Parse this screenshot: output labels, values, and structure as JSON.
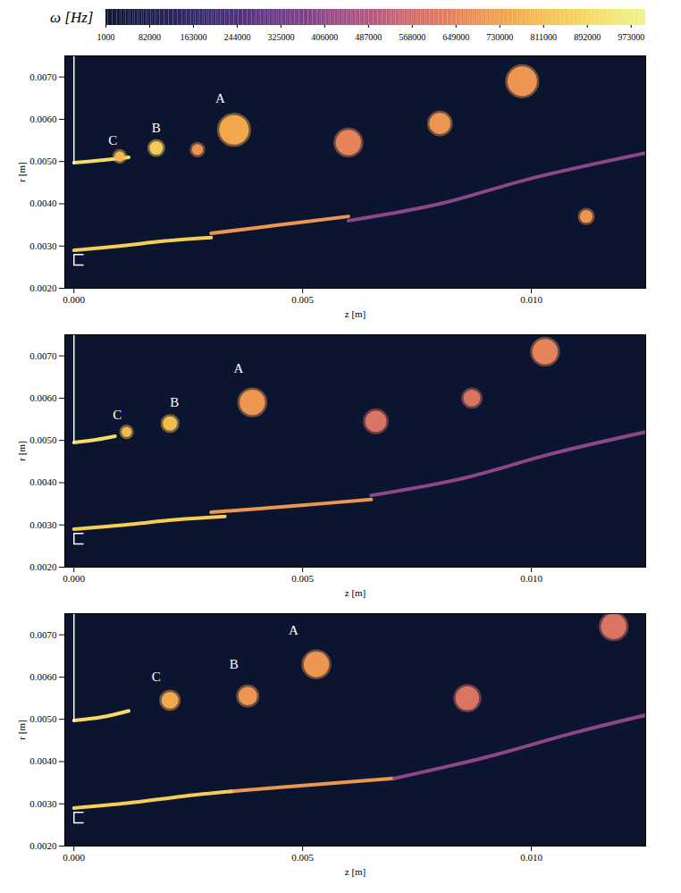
{
  "chart_data": {
    "type": "field",
    "xlabel": "z [m]",
    "ylabel": "r [m]",
    "xlim": [
      -0.0002,
      0.0125
    ],
    "xticks": [
      0,
      0.005,
      0.01
    ],
    "ylim": [
      0.002,
      0.0075
    ],
    "yticks": [
      0.002,
      0.003,
      0.004,
      0.005,
      0.006,
      0.007
    ],
    "colorbar": {
      "label": "ω [Hz]",
      "range": [
        1000,
        1000000
      ],
      "ticks": [
        1000,
        82000,
        163000,
        244000,
        325000,
        406000,
        487000,
        568000,
        649000,
        730000,
        811000,
        892000,
        973000
      ]
    },
    "walls": [
      {
        "z": [
          0,
          0
        ],
        "r": [
          0.00495,
          0.0075
        ]
      },
      {
        "z": [
          0.0002,
          0,
          0,
          0.0002
        ],
        "r": [
          0.0028,
          0.0028,
          0.00255,
          0.00255
        ]
      }
    ],
    "panels": [
      {
        "layers": [
          {
            "omega": 900000,
            "z": [
              0,
              0.0006,
              0.0012
            ],
            "r": [
              0.00497,
              0.00503,
              0.0051
            ]
          },
          {
            "omega": 850000,
            "z": [
              0,
              0.001,
              0.002,
              0.003
            ],
            "r": [
              0.0029,
              0.003,
              0.00312,
              0.0032
            ]
          },
          {
            "omega": 700000,
            "z": [
              0.003,
              0.0045,
              0.006
            ],
            "r": [
              0.0033,
              0.0035,
              0.0037
            ]
          },
          {
            "omega": 400000,
            "z": [
              0.006,
              0.008,
              0.01,
              0.0125
            ],
            "r": [
              0.0036,
              0.004,
              0.0046,
              0.0052
            ]
          }
        ],
        "vortices": [
          {
            "z": 0.001,
            "r": 0.00512,
            "radius": 0.00012,
            "omega": 800000
          },
          {
            "z": 0.0018,
            "r": 0.00532,
            "radius": 0.00016,
            "omega": 850000
          },
          {
            "z": 0.0027,
            "r": 0.00528,
            "radius": 0.00013,
            "omega": 700000
          },
          {
            "z": 0.0035,
            "r": 0.00575,
            "radius": 0.00035,
            "omega": 750000
          },
          {
            "z": 0.006,
            "r": 0.00545,
            "radius": 0.0003,
            "omega": 650000
          },
          {
            "z": 0.008,
            "r": 0.0059,
            "radius": 0.00025,
            "omega": 700000
          },
          {
            "z": 0.0098,
            "r": 0.0069,
            "radius": 0.00035,
            "omega": 700000
          },
          {
            "z": 0.0112,
            "r": 0.0037,
            "radius": 0.00015,
            "omega": 700000
          }
        ],
        "annotations": [
          {
            "text": "C",
            "z": 0.00085,
            "r": 0.0055
          },
          {
            "text": "B",
            "z": 0.0018,
            "r": 0.0058
          },
          {
            "text": "A",
            "z": 0.0032,
            "r": 0.0065
          }
        ]
      },
      {
        "layers": [
          {
            "omega": 900000,
            "z": [
              0,
              0.0005,
              0.0009
            ],
            "r": [
              0.00495,
              0.00502,
              0.0051
            ]
          },
          {
            "omega": 850000,
            "z": [
              0,
              0.0011,
              0.0022,
              0.0033
            ],
            "r": [
              0.0029,
              0.003,
              0.00312,
              0.0032
            ]
          },
          {
            "omega": 700000,
            "z": [
              0.003,
              0.0048,
              0.0065
            ],
            "r": [
              0.0033,
              0.00345,
              0.0036
            ]
          },
          {
            "omega": 400000,
            "z": [
              0.0065,
              0.0085,
              0.0105,
              0.0125
            ],
            "r": [
              0.0037,
              0.0041,
              0.0047,
              0.0052
            ]
          }
        ],
        "vortices": [
          {
            "z": 0.00115,
            "r": 0.0052,
            "radius": 0.00012,
            "omega": 800000
          },
          {
            "z": 0.0021,
            "r": 0.0054,
            "radius": 0.00017,
            "omega": 800000
          },
          {
            "z": 0.0039,
            "r": 0.0059,
            "radius": 0.0003,
            "omega": 700000
          },
          {
            "z": 0.0066,
            "r": 0.00545,
            "radius": 0.00025,
            "omega": 600000
          },
          {
            "z": 0.0087,
            "r": 0.006,
            "radius": 0.0002,
            "omega": 600000
          },
          {
            "z": 0.0103,
            "r": 0.0071,
            "radius": 0.0003,
            "omega": 650000
          }
        ],
        "annotations": [
          {
            "text": "C",
            "z": 0.00095,
            "r": 0.0056
          },
          {
            "text": "B",
            "z": 0.0022,
            "r": 0.0059
          },
          {
            "text": "A",
            "z": 0.0036,
            "r": 0.0067
          }
        ]
      },
      {
        "layers": [
          {
            "omega": 900000,
            "z": [
              0,
              0.0006,
              0.0012
            ],
            "r": [
              0.00497,
              0.00505,
              0.0052
            ]
          },
          {
            "omega": 850000,
            "z": [
              0,
              0.0012,
              0.0024,
              0.0035
            ],
            "r": [
              0.0029,
              0.00302,
              0.00318,
              0.0033
            ]
          },
          {
            "omega": 700000,
            "z": [
              0.0035,
              0.0052,
              0.007
            ],
            "r": [
              0.0033,
              0.00345,
              0.0036
            ]
          },
          {
            "omega": 400000,
            "z": [
              0.007,
              0.009,
              0.011,
              0.0125
            ],
            "r": [
              0.0036,
              0.0041,
              0.0047,
              0.0051
            ]
          }
        ],
        "vortices": [
          {
            "z": 0.0021,
            "r": 0.00545,
            "radius": 0.0002,
            "omega": 750000
          },
          {
            "z": 0.0038,
            "r": 0.00555,
            "radius": 0.00022,
            "omega": 700000
          },
          {
            "z": 0.0053,
            "r": 0.0063,
            "radius": 0.0003,
            "omega": 700000
          },
          {
            "z": 0.0086,
            "r": 0.0055,
            "radius": 0.00028,
            "omega": 600000
          },
          {
            "z": 0.0118,
            "r": 0.0072,
            "radius": 0.0003,
            "omega": 600000
          }
        ],
        "annotations": [
          {
            "text": "C",
            "z": 0.0018,
            "r": 0.006
          },
          {
            "text": "B",
            "z": 0.0035,
            "r": 0.0063
          },
          {
            "text": "A",
            "z": 0.0048,
            "r": 0.0071
          }
        ]
      }
    ]
  }
}
